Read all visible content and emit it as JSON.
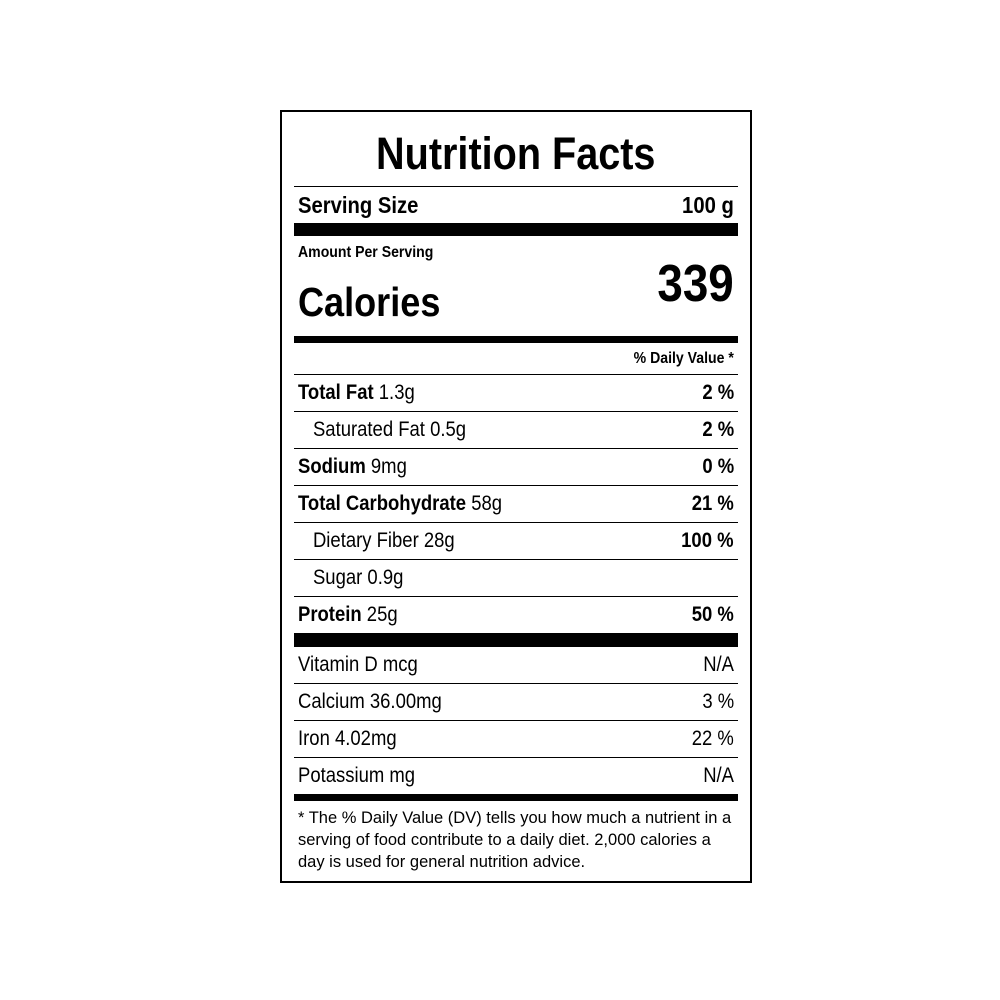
{
  "title": "Nutrition Facts",
  "serving": {
    "label": "Serving Size",
    "value": "100 g"
  },
  "amount_per_serving": "Amount Per Serving",
  "calories": {
    "label": "Calories",
    "value": "339"
  },
  "daily_value_header": "% Daily Value *",
  "nutrients": [
    {
      "name": "Total Fat",
      "amount": "1.3g",
      "dv": "2 %",
      "bold": true,
      "indent": false
    },
    {
      "name": "Saturated Fat",
      "amount": "0.5g",
      "dv": "2 %",
      "bold": false,
      "indent": true
    },
    {
      "name": "Sodium",
      "amount": "9mg",
      "dv": "0 %",
      "bold": true,
      "indent": false
    },
    {
      "name": "Total Carbohydrate",
      "amount": "58g",
      "dv": "21 %",
      "bold": true,
      "indent": false
    },
    {
      "name": "Dietary Fiber",
      "amount": "28g",
      "dv": "100 %",
      "bold": false,
      "indent": true
    },
    {
      "name": "Sugar",
      "amount": "0.9g",
      "dv": "",
      "bold": false,
      "indent": true
    },
    {
      "name": "Protein",
      "amount": "25g",
      "dv": "50 %",
      "bold": true,
      "indent": false
    }
  ],
  "micronutrients": [
    {
      "name": "Vitamin D mcg",
      "dv": "N/A"
    },
    {
      "name": "Calcium 36.00mg",
      "dv": "3 %"
    },
    {
      "name": "Iron 4.02mg",
      "dv": "22 %"
    },
    {
      "name": "Potassium mg",
      "dv": "N/A"
    }
  ],
  "footnote": "* The % Daily Value (DV) tells you how much a nutrient in a serving of food contribute to a daily diet. 2,000 calories a day is used for general nutrition advice."
}
